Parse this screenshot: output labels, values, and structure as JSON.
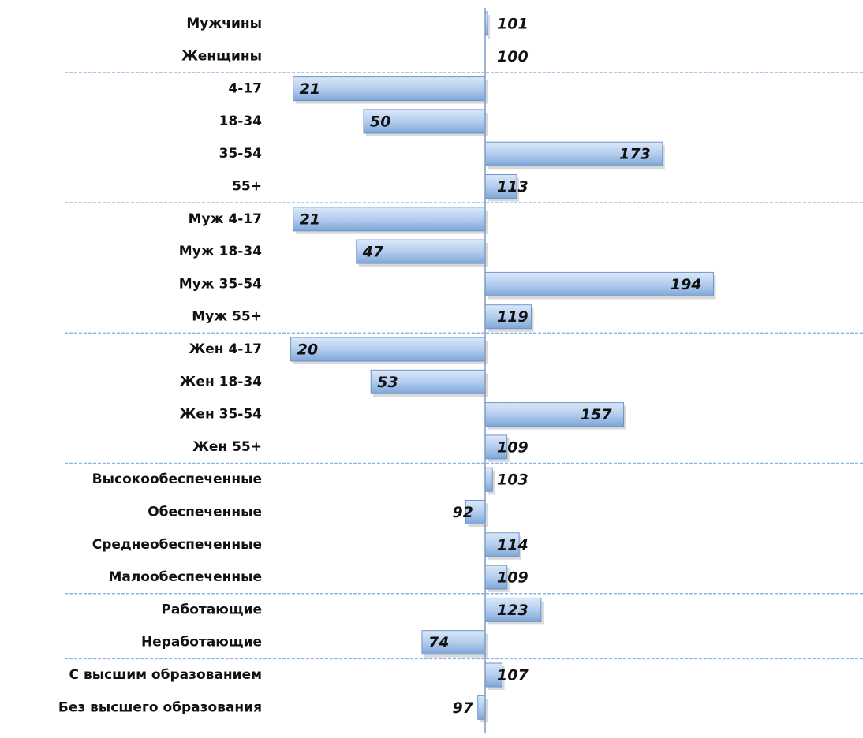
{
  "chart_data": {
    "type": "bar",
    "orientation": "horizontal",
    "categories": [
      "Мужчины",
      "Женщины",
      "4-17",
      "18-34",
      "35-54",
      "55+",
      "Муж 4-17",
      "Муж 18-34",
      "Муж 35-54",
      "Муж 55+",
      "Жен 4-17",
      "Жен 18-34",
      "Жен 35-54",
      "Жен 55+",
      "Высокообеспеченные",
      "Обеспеченные",
      "Среднеобеспеченные",
      "Малообеспеченные",
      "Работающие",
      "Неработающие",
      "С высшим образованием",
      "Без высшего образования"
    ],
    "values": [
      101,
      100,
      21,
      50,
      173,
      113,
      21,
      47,
      194,
      119,
      20,
      53,
      157,
      109,
      103,
      92,
      114,
      109,
      123,
      74,
      107,
      97
    ],
    "color": "#8db3e2",
    "xlim": [
      0,
      200
    ]
  }
}
